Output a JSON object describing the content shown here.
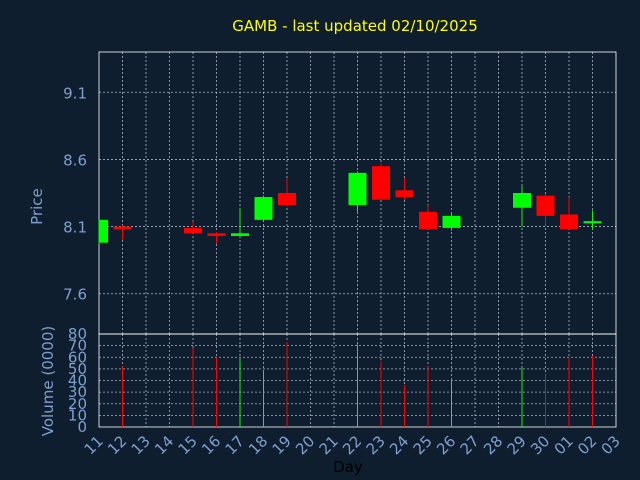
{
  "colors": {
    "background": "#0f1e2e",
    "title": "#ffff00",
    "axis_text": "#7f9fcf",
    "grid": "#cfd8e6",
    "frame": "#ffffff",
    "up": "#00ff00",
    "down": "#ff0000"
  },
  "chart_data": [
    {
      "type": "candlestick",
      "title": "GAMB - last updated 02/10/2025",
      "ylabel": "Price",
      "xlabel": "",
      "ylim": [
        7.3,
        9.4
      ],
      "yticks": [
        7.6,
        8.1,
        8.6,
        9.1
      ],
      "ytick_labels": [
        "7.6",
        "8.1",
        "8.6",
        "9.1"
      ],
      "grid": true,
      "x_slots": [
        "11",
        "12",
        "13",
        "14",
        "15",
        "16",
        "17",
        "18",
        "19",
        "20",
        "21",
        "22",
        "23",
        "24",
        "25",
        "26",
        "27",
        "28",
        "29",
        "30",
        "01",
        "02",
        "03"
      ],
      "candles": [
        {
          "x": "11",
          "open": 7.98,
          "high": 8.15,
          "low": 7.97,
          "close": 8.15
        },
        {
          "x": "12",
          "open": 8.1,
          "high": 8.11,
          "low": 8.0,
          "close": 8.08
        },
        {
          "x": "15",
          "open": 8.09,
          "high": 8.14,
          "low": 8.05,
          "close": 8.05
        },
        {
          "x": "16",
          "open": 8.05,
          "high": 8.06,
          "low": 7.97,
          "close": 8.03
        },
        {
          "x": "17",
          "open": 8.03,
          "high": 8.24,
          "low": 8.02,
          "close": 8.05
        },
        {
          "x": "18",
          "open": 8.15,
          "high": 8.33,
          "low": 8.14,
          "close": 8.32
        },
        {
          "x": "19",
          "open": 8.35,
          "high": 8.46,
          "low": 8.25,
          "close": 8.26
        },
        {
          "x": "22",
          "open": 8.26,
          "high": 8.51,
          "low": 8.21,
          "close": 8.5
        },
        {
          "x": "23",
          "open": 8.55,
          "high": 8.57,
          "low": 8.3,
          "close": 8.3
        },
        {
          "x": "24",
          "open": 8.37,
          "high": 8.46,
          "low": 8.3,
          "close": 8.32
        },
        {
          "x": "25",
          "open": 8.21,
          "high": 8.26,
          "low": 8.08,
          "close": 8.08
        },
        {
          "x": "26",
          "open": 8.09,
          "high": 8.2,
          "low": 8.07,
          "close": 8.18
        },
        {
          "x": "29",
          "open": 8.24,
          "high": 8.4,
          "low": 8.1,
          "close": 8.35
        },
        {
          "x": "30",
          "open": 8.33,
          "high": 8.34,
          "low": 8.11,
          "close": 8.18
        },
        {
          "x": "01",
          "open": 8.19,
          "high": 8.32,
          "low": 8.08,
          "close": 8.08
        },
        {
          "x": "02",
          "open": 8.14,
          "high": 8.22,
          "low": 8.08,
          "close": 8.14
        }
      ]
    },
    {
      "type": "bar",
      "ylabel": "Volume (0000)",
      "xlabel": "Day",
      "ylim": [
        0,
        80
      ],
      "yticks": [
        0,
        10,
        20,
        30,
        40,
        50,
        60,
        70,
        80
      ],
      "ytick_labels": [
        "0",
        "10",
        "20",
        "30",
        "40",
        "50",
        "60",
        "70",
        "80"
      ],
      "grid": true,
      "categories": [
        "11",
        "12",
        "13",
        "14",
        "15",
        "16",
        "17",
        "18",
        "19",
        "20",
        "21",
        "22",
        "23",
        "24",
        "25",
        "26",
        "27",
        "28",
        "29",
        "30",
        "01",
        "02",
        "03"
      ],
      "bars": [
        {
          "x": "12",
          "value": 52,
          "dir": "down"
        },
        {
          "x": "15",
          "value": 68,
          "dir": "down"
        },
        {
          "x": "16",
          "value": 60,
          "dir": "down"
        },
        {
          "x": "17",
          "value": 58,
          "dir": "up"
        },
        {
          "x": "18",
          "value": 48,
          "dir": "up"
        },
        {
          "x": "19",
          "value": 73,
          "dir": "down"
        },
        {
          "x": "22",
          "value": 71,
          "dir": "up"
        },
        {
          "x": "23",
          "value": 57,
          "dir": "down"
        },
        {
          "x": "24",
          "value": 36,
          "dir": "down"
        },
        {
          "x": "25",
          "value": 52,
          "dir": "down"
        },
        {
          "x": "26",
          "value": 40,
          "dir": "up"
        },
        {
          "x": "29",
          "value": 51,
          "dir": "up"
        },
        {
          "x": "30",
          "value": 46,
          "dir": "down"
        },
        {
          "x": "01",
          "value": 60,
          "dir": "down"
        },
        {
          "x": "02",
          "value": 61,
          "dir": "down"
        }
      ]
    }
  ]
}
